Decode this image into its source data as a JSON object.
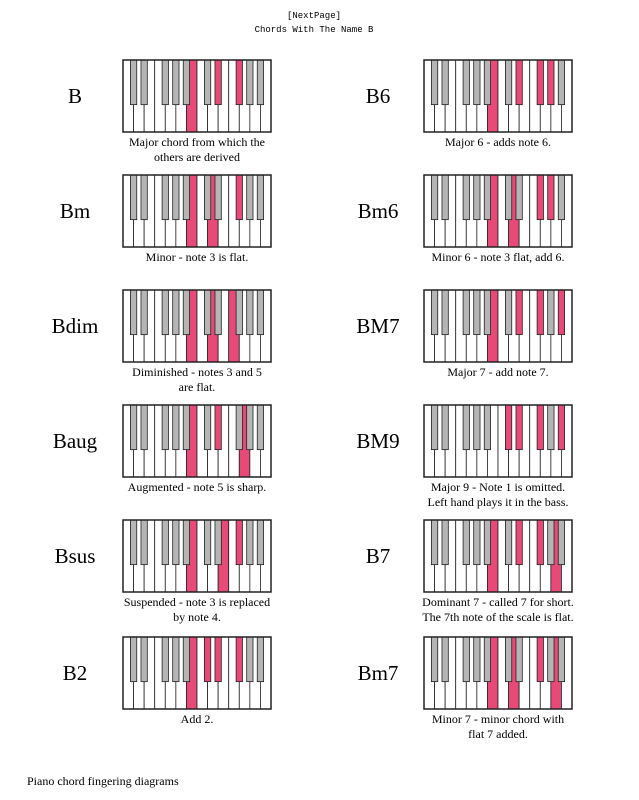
{
  "header": {
    "link": "[NextPage]",
    "title": "Chords With The Name B"
  },
  "chords": [
    {
      "name": "B",
      "description": [
        "Major chord from which the",
        "others are derived"
      ]
    },
    {
      "name": "Bm",
      "description": [
        "Minor - note 3 is flat."
      ]
    },
    {
      "name": "Bdim",
      "description": [
        "Diminished - notes 3 and 5",
        "are flat."
      ]
    },
    {
      "name": "Baug",
      "description": [
        "Augmented - note 5 is sharp."
      ]
    },
    {
      "name": "Bsus",
      "description": [
        "Suspended - note 3 is replaced",
        "by note 4."
      ]
    },
    {
      "name": "B2",
      "description": [
        "Add 2."
      ]
    },
    {
      "name": "B6",
      "description": [
        "Major 6 - adds note 6."
      ]
    },
    {
      "name": "Bm6",
      "description": [
        "Minor 6 - note 3 flat, add 6."
      ]
    },
    {
      "name": "BM7",
      "description": [
        "Major 7 - add note 7."
      ]
    },
    {
      "name": "BM9",
      "description": [
        "Major 9 - Note 1 is omitted.",
        "Left hand plays it in the bass."
      ]
    },
    {
      "name": "B7",
      "description": [
        "Dominant 7 - called 7 for short.",
        "The 7th note of the scale is flat."
      ]
    },
    {
      "name": "Bm7",
      "description": [
        "Minor 7 - minor chord with",
        "flat 7 added."
      ]
    }
  ],
  "footer": "Piano chord fingering diagrams"
}
